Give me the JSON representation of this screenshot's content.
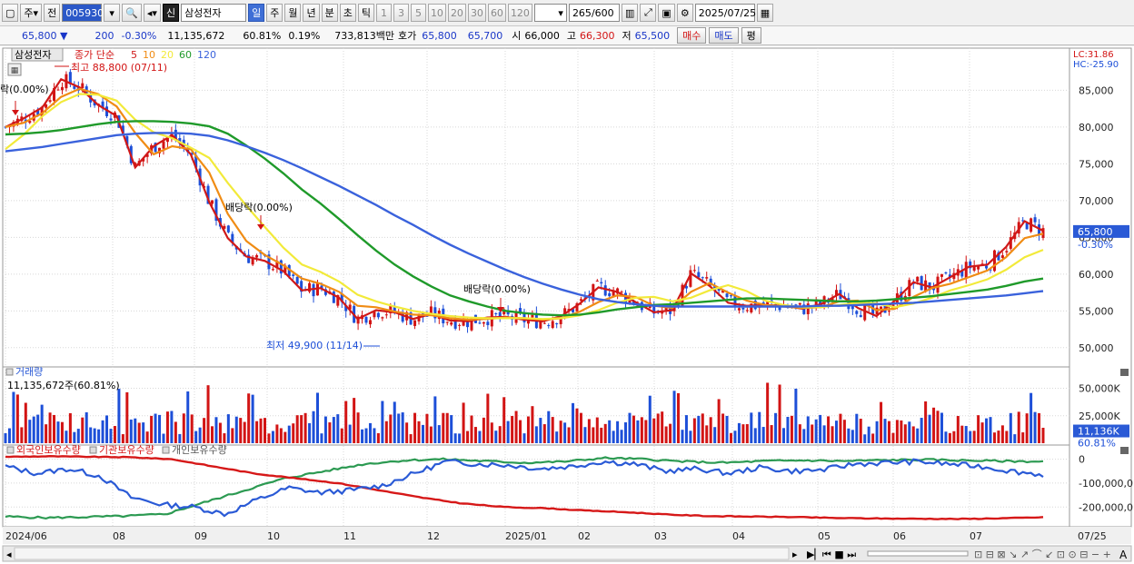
{
  "toolbar": {
    "period_type": "주",
    "prev_label": "전",
    "code": "005930",
    "stock_name_badge": "신",
    "stock_name": "삼성전자",
    "intervals": [
      "일",
      "주",
      "월",
      "년",
      "분",
      "초",
      "틱"
    ],
    "active_interval": "일",
    "minutes": [
      "1",
      "3",
      "5",
      "10",
      "20",
      "30",
      "60",
      "120"
    ],
    "count": "265",
    "count_total": "/600",
    "date": "2025/07/25"
  },
  "quote": {
    "price": "65,800",
    "arrow": "▼",
    "change": "200",
    "change_rate": "-0.30%",
    "volume": "11,135,672",
    "volume_ratio": "60.81%",
    "turnover_rate": "0.19%",
    "amount": "733,813백만",
    "bid_label": "호가",
    "bid_ask_1": "65,800",
    "bid_ask_2": "65,700",
    "open_label": "시",
    "open": "66,000",
    "high_label": "고",
    "high": "66,300",
    "low_label": "저",
    "low": "65,500",
    "buy_label": "매수",
    "sell_label": "매도",
    "extra_label": "평"
  },
  "colors": {
    "up": "#d21414",
    "down": "#1d4fd8",
    "ma5": "#d01818",
    "ma10": "#f08c14",
    "ma20": "#f2ea3a",
    "ma60": "#1f9a2a",
    "ma120": "#3a62dc",
    "foreign": "#2a5ad6",
    "institution": "#d61818",
    "individual": "#2c9a52"
  },
  "chart_data": [
    {
      "type": "candlestick",
      "panel": "price",
      "title": "삼성전자",
      "legend": [
        "종가 단순",
        "5",
        "10",
        "20",
        "60",
        "120"
      ],
      "yticks": [
        "85,000",
        "80,000",
        "75,000",
        "70,000",
        "65,000",
        "60,000",
        "55,000",
        "50,000"
      ],
      "ylim": [
        48000,
        89500
      ],
      "xticks": [
        "2024/06",
        "08",
        "09",
        "10",
        "11",
        "12",
        "2025/01",
        "02",
        "03",
        "04",
        "05",
        "06",
        "07",
        "07/25"
      ],
      "last_price": "65,800",
      "last_change": "-0.30%",
      "lc": "LC:31.86",
      "hc": "HC:-25.90",
      "max_label": "최고 88,800 (07/11)",
      "min_label": "최저 49,900 (11/14)",
      "dividend_labels": [
        "락(0.00%)",
        "배당락(0.00%)",
        "배당락(0.00%)"
      ],
      "series": [
        {
          "name": "5",
          "values": [
            80000,
            81200,
            82700,
            86500,
            85400,
            83000,
            81500,
            74500,
            77400,
            78900,
            76300,
            69800,
            64900,
            62400,
            61800,
            60400,
            57800,
            58100,
            56800,
            53900,
            55100,
            54800,
            53900,
            54600,
            53700,
            53600,
            54100,
            54200,
            53800,
            53600,
            54300,
            56000,
            58200,
            57600,
            56200,
            54800,
            55100,
            60100,
            58400,
            56100,
            55700,
            55800,
            55700,
            55300,
            55900,
            57300,
            55400,
            54300,
            56400,
            58900,
            58200,
            59600,
            61000,
            61300,
            63700,
            67200,
            65900
          ]
        },
        {
          "name": "10",
          "values": [
            80000,
            80600,
            81900,
            84100,
            85200,
            84500,
            82800,
            79200,
            76300,
            77400,
            77000,
            73800,
            68200,
            64500,
            62600,
            61200,
            59400,
            58700,
            57600,
            55700,
            55500,
            54900,
            54500,
            54400,
            54000,
            53800,
            53900,
            54100,
            54000,
            53800,
            54000,
            54900,
            56200,
            57100,
            56900,
            55700,
            55400,
            57600,
            58800,
            57500,
            56400,
            55800,
            55600,
            55400,
            55500,
            56300,
            56400,
            55100,
            55300,
            56900,
            58100,
            58700,
            59600,
            60500,
            62300,
            64900,
            65500
          ]
        },
        {
          "name": "20",
          "values": [
            77000,
            79000,
            81500,
            83400,
            84500,
            84400,
            83600,
            81000,
            79300,
            78500,
            77200,
            75800,
            72400,
            69300,
            66400,
            63600,
            61300,
            60300,
            59000,
            57200,
            56300,
            55600,
            55000,
            54600,
            54300,
            54100,
            54000,
            54000,
            54000,
            53900,
            54000,
            54400,
            55100,
            56100,
            56800,
            56900,
            56300,
            56800,
            57800,
            58500,
            57700,
            56400,
            55800,
            55500,
            55500,
            55800,
            56100,
            56000,
            55500,
            56000,
            56800,
            57800,
            58500,
            59300,
            60600,
            62300,
            63300
          ]
        },
        {
          "name": "60",
          "values": [
            79000,
            79100,
            79300,
            79600,
            80000,
            80400,
            80700,
            80800,
            80800,
            80700,
            80500,
            80100,
            79100,
            77500,
            75700,
            73700,
            71500,
            69600,
            67500,
            65300,
            63200,
            61300,
            59700,
            58300,
            57100,
            56300,
            55600,
            55000,
            54700,
            54500,
            54400,
            54500,
            54800,
            55200,
            55500,
            55800,
            55900,
            56100,
            56300,
            56500,
            56700,
            56700,
            56600,
            56500,
            56400,
            56300,
            56300,
            56400,
            56600,
            56800,
            57000,
            57300,
            57600,
            57900,
            58400,
            59000,
            59400
          ]
        },
        {
          "name": "120",
          "values": [
            76700,
            77000,
            77300,
            77700,
            78100,
            78500,
            78900,
            79100,
            79200,
            79200,
            79100,
            78800,
            78200,
            77400,
            76500,
            75500,
            74400,
            73200,
            72000,
            70700,
            69400,
            68000,
            66700,
            65300,
            64000,
            62800,
            61700,
            60600,
            59600,
            58700,
            57900,
            57200,
            56600,
            56200,
            55900,
            55700,
            55600,
            55600,
            55600,
            55600,
            55600,
            55600,
            55600,
            55600,
            55700,
            55700,
            55800,
            55900,
            56000,
            56100,
            56300,
            56500,
            56700,
            56900,
            57100,
            57400,
            57700
          ]
        }
      ]
    },
    {
      "type": "bar",
      "panel": "volume",
      "title": "거래량",
      "subtitle": "11,135,672주(60.81%)",
      "yticks": [
        "50,000K",
        "25,000K"
      ],
      "ylim": [
        0,
        62000
      ],
      "last_value": "11,136K",
      "last_ratio": "60.81%"
    },
    {
      "type": "line",
      "panel": "holdings",
      "legend": [
        "외국인보유수량",
        "기관보유수량",
        "개인보유수량"
      ],
      "yticks": [
        "0",
        "-100,000,0",
        "-200,000,0"
      ],
      "ylim": [
        -275000,
        25000
      ]
    }
  ]
}
